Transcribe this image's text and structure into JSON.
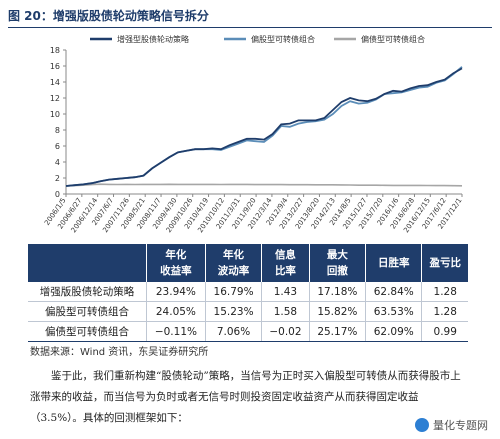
{
  "figure_title": "图 20：增强版股债轮动策略信号拆分",
  "chart_data": {
    "type": "line",
    "title": "",
    "xlabel": "",
    "ylabel": "",
    "ylim": [
      0,
      18
    ],
    "yticks": [
      0,
      2,
      4,
      6,
      8,
      10,
      12,
      14,
      16,
      18
    ],
    "xticks": [
      "2006/1/5",
      "2006/6/27",
      "2006/12/14",
      "2007/6/7",
      "2007/11/26",
      "2008/5/21",
      "2008/11/7",
      "2009/4/30",
      "2009/10/26",
      "2010/4/19",
      "2010/10/12",
      "2011/3/31",
      "2011/9/20",
      "2012/3/14",
      "2012/9/4",
      "2013/2/27",
      "2013/8/20",
      "2014/2/13",
      "2014/8/5",
      "2015/1/27",
      "2015/7/20",
      "2016/1/6",
      "2016/6/28",
      "2016/12/15",
      "2017/6/12",
      "2017/12/1"
    ],
    "grid": false,
    "legend_placement": "top",
    "series": [
      {
        "name": "增强型股债轮动策略",
        "color": "#1f3d6b",
        "values": [
          1.0,
          1.1,
          1.2,
          1.35,
          1.6,
          1.8,
          1.9,
          2.0,
          2.1,
          2.3,
          3.2,
          3.9,
          4.6,
          5.2,
          5.4,
          5.6,
          5.6,
          5.7,
          5.6,
          6.1,
          6.5,
          6.9,
          6.9,
          6.8,
          7.5,
          8.7,
          8.8,
          9.2,
          9.2,
          9.2,
          9.5,
          10.5,
          11.5,
          12.0,
          11.7,
          11.6,
          11.9,
          12.5,
          12.9,
          12.8,
          13.2,
          13.5,
          13.6,
          14.0,
          14.3,
          15.1,
          15.7
        ]
      },
      {
        "name": "偏股型可转债组合",
        "color": "#5b8db8",
        "values": [
          1.0,
          1.1,
          1.2,
          1.35,
          1.6,
          1.8,
          1.9,
          2.0,
          2.1,
          2.3,
          3.2,
          3.9,
          4.6,
          5.2,
          5.4,
          5.6,
          5.6,
          5.6,
          5.5,
          5.9,
          6.3,
          6.7,
          6.6,
          6.5,
          7.3,
          8.5,
          8.4,
          8.8,
          9.0,
          9.1,
          9.3,
          10.0,
          11.0,
          11.6,
          11.3,
          11.4,
          11.8,
          12.5,
          12.6,
          12.7,
          13.0,
          13.3,
          13.4,
          13.9,
          14.2,
          15.0,
          15.9
        ]
      },
      {
        "name": "偏债型可转债组合",
        "color": "#a6a6a6",
        "values": [
          1.0,
          1.05,
          1.1,
          1.18,
          1.22,
          1.2,
          1.19,
          1.2,
          1.19,
          1.2,
          1.2,
          1.2,
          1.21,
          1.2,
          1.2,
          1.2,
          1.2,
          1.2,
          1.19,
          1.2,
          1.2,
          1.2,
          1.18,
          1.17,
          1.18,
          1.17,
          1.16,
          1.16,
          1.16,
          1.15,
          1.15,
          1.15,
          1.14,
          1.12,
          1.1,
          1.1,
          1.1,
          1.09,
          1.08,
          1.08,
          1.07,
          1.07,
          1.06,
          1.05,
          1.05,
          1.04,
          1.03
        ]
      }
    ]
  },
  "table": {
    "headers": [
      {
        "line1": "",
        "line2": ""
      },
      {
        "line1": "年化",
        "line2": "收益率"
      },
      {
        "line1": "年化",
        "line2": "波动率"
      },
      {
        "line1": "信息",
        "line2": "比率"
      },
      {
        "line1": "最大",
        "line2": "回撤"
      },
      {
        "line1": "日胜率",
        "line2": ""
      },
      {
        "line1": "盈亏比",
        "line2": ""
      }
    ],
    "rows": [
      [
        "增强版股债轮动策略",
        "23.94%",
        "16.79%",
        "1.43",
        "17.18%",
        "62.84%",
        "1.28"
      ],
      [
        "偏股型可转债组合",
        "24.05%",
        "15.23%",
        "1.58",
        "15.82%",
        "63.53%",
        "1.28"
      ],
      [
        "偏债型可转债组合",
        "−0.11%",
        "7.06%",
        "−0.02",
        "25.17%",
        "62.09%",
        "0.99"
      ]
    ]
  },
  "source": "数据来源：Wind 资讯，东吴证券研究所",
  "paragraph": "鉴于此，我们重新构建“股债轮动”策略，当信号为正时买入偏股型可转债从而获得股市上涨带来的收益，而当信号为负时或者无信号时则投资固定收益资产从而获得固定收益（3.5%）。具体的回测框架如下：",
  "watermark": "量化专题网"
}
